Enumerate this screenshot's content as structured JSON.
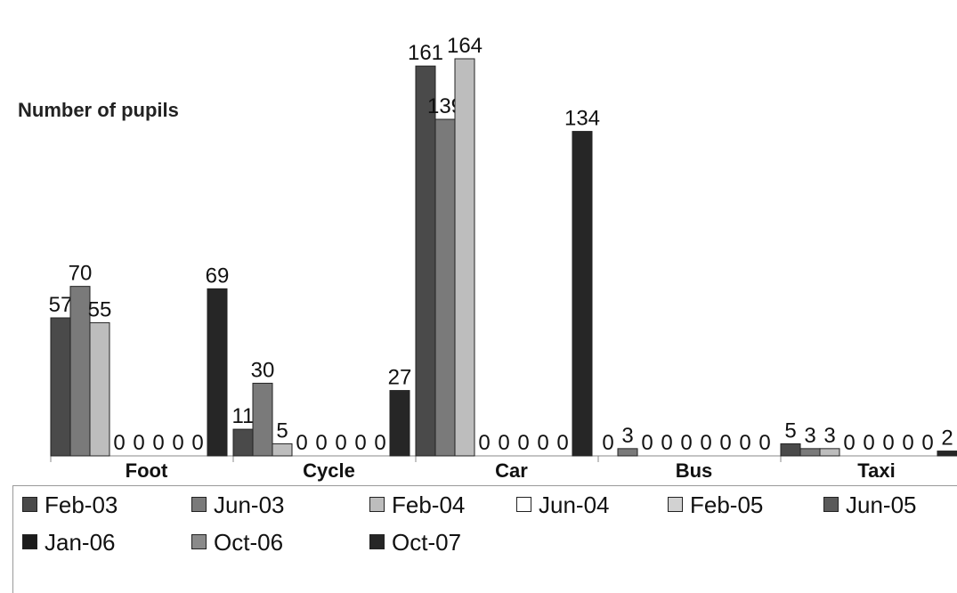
{
  "chart_data": {
    "type": "bar",
    "ylabel": "Number of pupils",
    "categories": [
      "Foot",
      "Cycle",
      "Car",
      "Bus",
      "Taxi"
    ],
    "ylim": [
      0,
      170
    ],
    "grid": false,
    "legend_position": "bottom",
    "series": [
      {
        "name": "Feb-03",
        "color": "#4a4a4a",
        "values": [
          57,
          11,
          161,
          0,
          5
        ]
      },
      {
        "name": "Jun-03",
        "color": "#7a7a7a",
        "values": [
          70,
          30,
          139,
          3,
          3
        ]
      },
      {
        "name": "Feb-04",
        "color": "#bdbdbd",
        "values": [
          55,
          5,
          164,
          0,
          3
        ]
      },
      {
        "name": "Jun-04",
        "color": "#ffffff",
        "values": [
          0,
          0,
          0,
          0,
          0
        ]
      },
      {
        "name": "Feb-05",
        "color": "#d2d2d2",
        "values": [
          0,
          0,
          0,
          0,
          0
        ]
      },
      {
        "name": "Jun-05",
        "color": "#5a5a5a",
        "values": [
          0,
          0,
          0,
          0,
          0
        ]
      },
      {
        "name": "Jan-06",
        "color": "#1c1c1c",
        "values": [
          0,
          0,
          0,
          0,
          0
        ]
      },
      {
        "name": "Oct-06",
        "color": "#8a8a8a",
        "values": [
          0,
          0,
          0,
          0,
          0
        ]
      },
      {
        "name": "Oct-07",
        "color": "#262626",
        "values": [
          69,
          27,
          134,
          0,
          2
        ]
      }
    ]
  }
}
